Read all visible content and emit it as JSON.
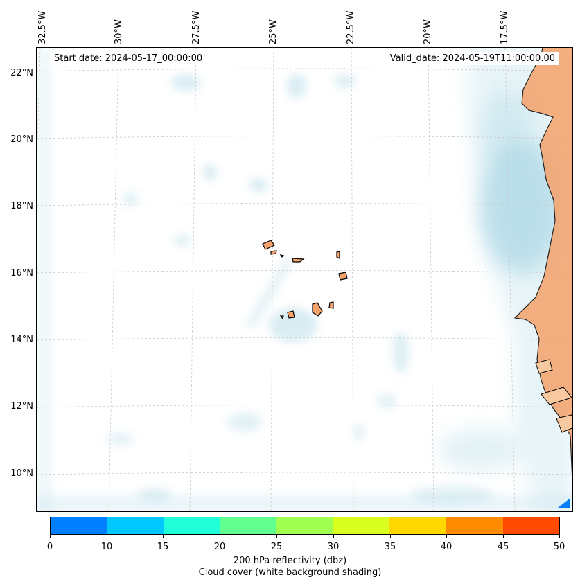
{
  "map": {
    "longitude_labels": [
      "32.5°W",
      "30°W",
      "27.5°W",
      "25°W",
      "22.5°W",
      "20°W",
      "17.5°W"
    ],
    "latitude_labels": [
      "22°N",
      "20°N",
      "18°N",
      "16°N",
      "14°N",
      "12°N",
      "10°N"
    ],
    "start_date": "Start date: 2024-05-17_00:00:00",
    "valid_date": "Valid_date: 2024-05-19T11:00:00.00",
    "land_color": "#f5a26b",
    "cloud_color": "#add8e6"
  },
  "colorbar": {
    "ticks": [
      "0",
      "10",
      "15",
      "20",
      "25",
      "30",
      "35",
      "40",
      "45",
      "50"
    ],
    "colors": [
      "#0080ff",
      "#00c8ff",
      "#20ffd8",
      "#60ff90",
      "#a0ff50",
      "#d8ff20",
      "#ffd800",
      "#ff8c00",
      "#ff4a00"
    ],
    "label_line1": "200 hPa reflectivity (dbz)",
    "label_line2": "Cloud cover (white background shading)"
  }
}
